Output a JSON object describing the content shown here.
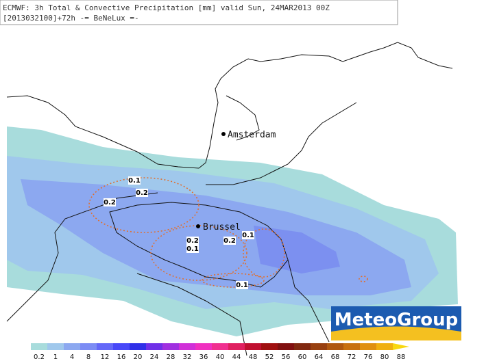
{
  "header": {
    "line1": "ECMWF: 3h Total & Convective Precipitation [mm] valid Sun, 24MAR2013 00Z",
    "line2": "[2013032100]+72h -= BeNeLux =-"
  },
  "cities": [
    {
      "name": "Amsterdam"
    },
    {
      "name": "Brussel"
    }
  ],
  "contour_labels": [
    0.1,
    0.2,
    0.2,
    0.2,
    0.1,
    0.2,
    0.1,
    0.1
  ],
  "legend": {
    "ticks": [
      0.2,
      1,
      4,
      8,
      12,
      16,
      20,
      24,
      28,
      32,
      36,
      40,
      44,
      48,
      52,
      56,
      60,
      64,
      68,
      72,
      76,
      80,
      88
    ],
    "colors": [
      "#a8dcdc",
      "#a0c8ec",
      "#8ca8f0",
      "#7c8cf4",
      "#6468f8",
      "#4848f8",
      "#3030e8",
      "#7030e8",
      "#a030e0",
      "#d030d8",
      "#f030c0",
      "#f03090",
      "#e02060",
      "#c01030",
      "#a01010",
      "#801010",
      "#802810",
      "#984010",
      "#b05810",
      "#c87010",
      "#e09010",
      "#f0b010",
      "#f8d810"
    ]
  },
  "logo": "MeteoGroup"
}
